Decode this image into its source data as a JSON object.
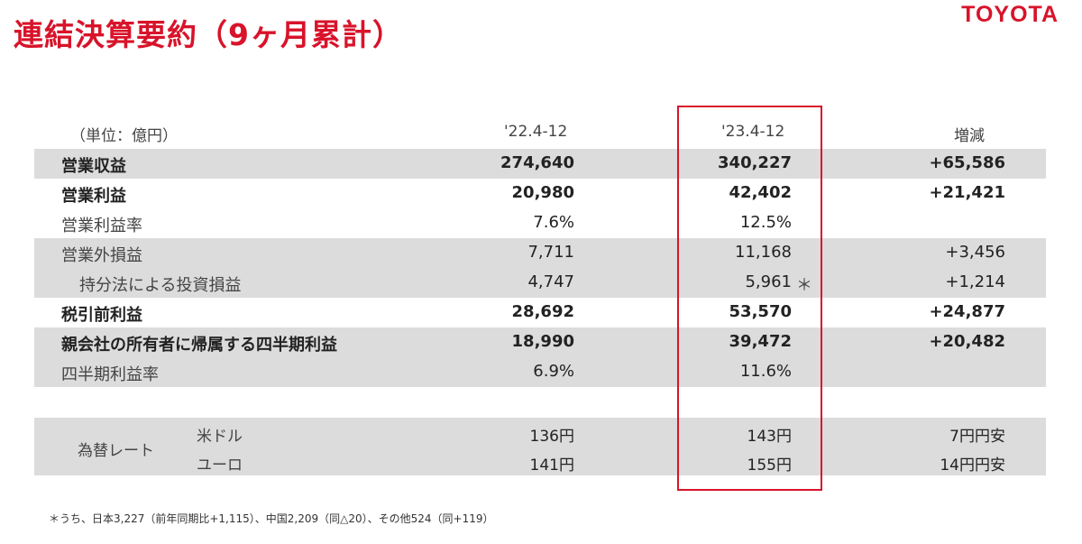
{
  "title": "連結決算要約（9ヶ月累計）",
  "logo": "TOYOTA",
  "header": {
    "unit": "（単位：億円）",
    "col_22": "'22.4-12",
    "col_23": "'23.4-12",
    "col_change": "増減"
  },
  "rows": [
    {
      "label": "営業収益",
      "v22": "274,640",
      "v23": "340,227",
      "change": "+65,586"
    },
    {
      "label": "営業利益",
      "v22": "20,980",
      "v23": "42,402",
      "change": "+21,421"
    },
    {
      "label": "営業利益率",
      "v22": "7.6%",
      "v23": "12.5%",
      "change": ""
    },
    {
      "label": "営業外損益",
      "v22": "7,711",
      "v23": "11,168",
      "change": "+3,456"
    },
    {
      "label": "持分法による投資損益",
      "v22": "4,747",
      "v23": "5,961",
      "marker": "＊",
      "change": "+1,214"
    },
    {
      "label": "税引前利益",
      "v22": "28,692",
      "v23": "53,570",
      "change": "+24,877"
    },
    {
      "label": "親会社の所有者に帰属する四半期利益",
      "v22": "18,990",
      "v23": "39,472",
      "change": "+20,482"
    },
    {
      "label": "四半期利益率",
      "v22": "6.9%",
      "v23": "11.6%",
      "change": ""
    }
  ],
  "fx": {
    "label": "為替レート",
    "rows": [
      {
        "currency": "米ドル",
        "v22": "136円",
        "v23": "143円",
        "change": "7円円安"
      },
      {
        "currency": "ユーロ",
        "v22": "141円",
        "v23": "155円",
        "change": "14円円安"
      }
    ]
  },
  "footnote": "＊うち、日本3,227（前年同期比+1,115）、中国2,209（同△20）、その他524（同+119）",
  "colors": {
    "accent_red": "#d8132a",
    "row_shade": "#dcdcdc"
  }
}
